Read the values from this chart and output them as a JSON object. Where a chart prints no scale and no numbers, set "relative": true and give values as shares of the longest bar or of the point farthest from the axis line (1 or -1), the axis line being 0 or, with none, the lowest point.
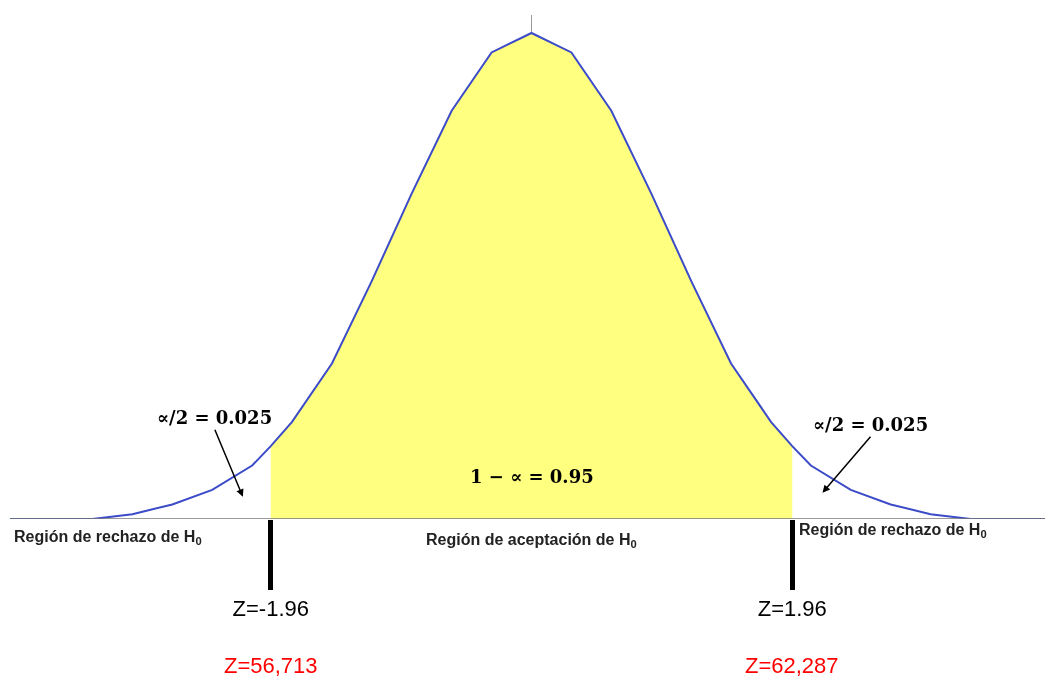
{
  "chart_data": {
    "type": "line",
    "relative": true,
    "xlim": [
      -3.92,
      3.86
    ],
    "xticks": [
      {
        "value": -1.96,
        "label": "Z=-1.96"
      },
      {
        "value": 1.96,
        "label": "Z=1.96"
      }
    ],
    "tick_labels": "x",
    "grid": false,
    "marker": "none",
    "line_style": "solid",
    "series": [
      {
        "type": "area",
        "color": "#ffff80",
        "x": [
          -1.96,
          -1.8,
          -1.5,
          -1.2,
          -0.9,
          -0.6,
          -0.3,
          0,
          0.3,
          0.6,
          0.9,
          1.2,
          1.5,
          1.8,
          1.96
        ],
        "values": [
          0.15,
          0.2,
          0.32,
          0.49,
          0.67,
          0.84,
          0.96,
          1,
          0.96,
          0.84,
          0.67,
          0.49,
          0.32,
          0.2,
          0.15
        ]
      },
      {
        "color": "#3c4bc8",
        "x": [
          -3.92,
          -3.6,
          -3.3,
          -3.0,
          -2.7,
          -2.4,
          -2.1,
          -1.96,
          -1.8,
          -1.5,
          -1.2,
          -0.9,
          -0.6,
          -0.3,
          0,
          0.3,
          0.6,
          0.9,
          1.2,
          1.5,
          1.8,
          1.96,
          2.1,
          2.4,
          2.7,
          3.0,
          3.3,
          3.6,
          3.86
        ],
        "values": [
          0,
          0,
          0,
          0.01,
          0.03,
          0.06,
          0.11,
          0.15,
          0.2,
          0.32,
          0.49,
          0.67,
          0.84,
          0.96,
          1,
          0.96,
          0.84,
          0.67,
          0.49,
          0.32,
          0.2,
          0.15,
          0.11,
          0.06,
          0.03,
          0.01,
          0,
          0,
          0
        ]
      }
    ],
    "annotations": [
      "∝/2 = 0.025",
      "∝/2 = 0.025",
      "1 − ∝ = 0.95",
      "Región de rechazo de H$_{0}$",
      "Región de aceptación de H$_{0}$",
      "Región de rechazo de H$_{0}$",
      "Z=56,713",
      "Z=62,287"
    ]
  }
}
